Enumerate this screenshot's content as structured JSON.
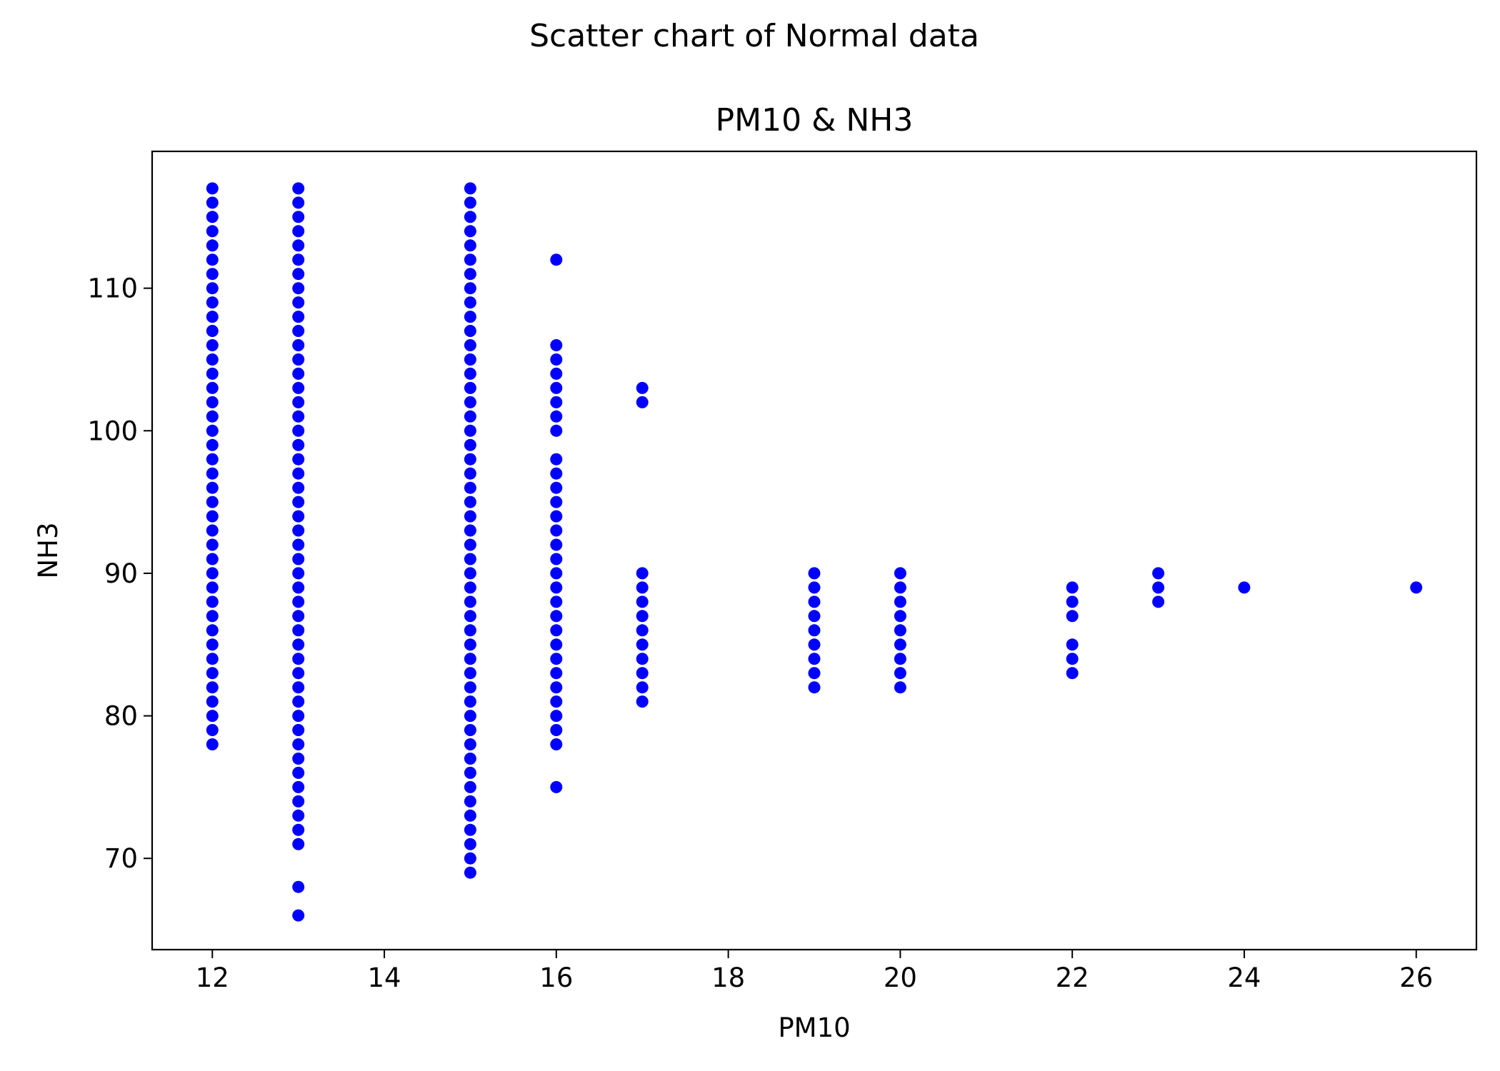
{
  "chart_data": {
    "type": "scatter",
    "suptitle": "Scatter chart of Normal data",
    "title": "PM10 & NH3",
    "xlabel": "PM10",
    "ylabel": "NH3",
    "xlim": [
      11.3,
      26.7
    ],
    "ylim": [
      63.6,
      119.6
    ],
    "xticks": [
      12,
      14,
      16,
      18,
      20,
      22,
      24,
      26
    ],
    "yticks": [
      70,
      80,
      90,
      100,
      110
    ],
    "grid": false,
    "legend": "none",
    "marker_color": "#0000ff",
    "series": [
      {
        "points": [
          [
            12,
            78
          ],
          [
            12,
            79
          ],
          [
            12,
            80
          ],
          [
            12,
            81
          ],
          [
            12,
            82
          ],
          [
            12,
            83
          ],
          [
            12,
            84
          ],
          [
            12,
            85
          ],
          [
            12,
            86
          ],
          [
            12,
            87
          ],
          [
            12,
            88
          ],
          [
            12,
            89
          ],
          [
            12,
            90
          ],
          [
            12,
            91
          ],
          [
            12,
            92
          ],
          [
            12,
            93
          ],
          [
            12,
            94
          ],
          [
            12,
            95
          ],
          [
            12,
            96
          ],
          [
            12,
            97
          ],
          [
            12,
            98
          ],
          [
            12,
            99
          ],
          [
            12,
            100
          ],
          [
            12,
            101
          ],
          [
            12,
            102
          ],
          [
            12,
            103
          ],
          [
            12,
            104
          ],
          [
            12,
            105
          ],
          [
            12,
            106
          ],
          [
            12,
            107
          ],
          [
            12,
            108
          ],
          [
            12,
            109
          ],
          [
            12,
            110
          ],
          [
            12,
            111
          ],
          [
            12,
            112
          ],
          [
            12,
            113
          ],
          [
            12,
            114
          ],
          [
            12,
            115
          ],
          [
            12,
            116
          ],
          [
            12,
            117
          ],
          [
            13,
            66
          ],
          [
            13,
            68
          ],
          [
            13,
            71
          ],
          [
            13,
            72
          ],
          [
            13,
            73
          ],
          [
            13,
            74
          ],
          [
            13,
            75
          ],
          [
            13,
            76
          ],
          [
            13,
            77
          ],
          [
            13,
            78
          ],
          [
            13,
            79
          ],
          [
            13,
            80
          ],
          [
            13,
            81
          ],
          [
            13,
            82
          ],
          [
            13,
            83
          ],
          [
            13,
            84
          ],
          [
            13,
            85
          ],
          [
            13,
            86
          ],
          [
            13,
            87
          ],
          [
            13,
            88
          ],
          [
            13,
            89
          ],
          [
            13,
            90
          ],
          [
            13,
            91
          ],
          [
            13,
            92
          ],
          [
            13,
            93
          ],
          [
            13,
            94
          ],
          [
            13,
            95
          ],
          [
            13,
            96
          ],
          [
            13,
            97
          ],
          [
            13,
            98
          ],
          [
            13,
            99
          ],
          [
            13,
            100
          ],
          [
            13,
            101
          ],
          [
            13,
            102
          ],
          [
            13,
            103
          ],
          [
            13,
            104
          ],
          [
            13,
            105
          ],
          [
            13,
            106
          ],
          [
            13,
            107
          ],
          [
            13,
            108
          ],
          [
            13,
            109
          ],
          [
            13,
            110
          ],
          [
            13,
            111
          ],
          [
            13,
            112
          ],
          [
            13,
            113
          ],
          [
            13,
            114
          ],
          [
            13,
            115
          ],
          [
            13,
            116
          ],
          [
            13,
            117
          ],
          [
            15,
            69
          ],
          [
            15,
            70
          ],
          [
            15,
            71
          ],
          [
            15,
            72
          ],
          [
            15,
            73
          ],
          [
            15,
            74
          ],
          [
            15,
            75
          ],
          [
            15,
            76
          ],
          [
            15,
            77
          ],
          [
            15,
            78
          ],
          [
            15,
            79
          ],
          [
            15,
            80
          ],
          [
            15,
            81
          ],
          [
            15,
            82
          ],
          [
            15,
            83
          ],
          [
            15,
            84
          ],
          [
            15,
            85
          ],
          [
            15,
            86
          ],
          [
            15,
            87
          ],
          [
            15,
            88
          ],
          [
            15,
            89
          ],
          [
            15,
            90
          ],
          [
            15,
            91
          ],
          [
            15,
            92
          ],
          [
            15,
            93
          ],
          [
            15,
            94
          ],
          [
            15,
            95
          ],
          [
            15,
            96
          ],
          [
            15,
            97
          ],
          [
            15,
            98
          ],
          [
            15,
            99
          ],
          [
            15,
            100
          ],
          [
            15,
            101
          ],
          [
            15,
            102
          ],
          [
            15,
            103
          ],
          [
            15,
            104
          ],
          [
            15,
            105
          ],
          [
            15,
            106
          ],
          [
            15,
            107
          ],
          [
            15,
            108
          ],
          [
            15,
            109
          ],
          [
            15,
            110
          ],
          [
            15,
            111
          ],
          [
            15,
            112
          ],
          [
            15,
            113
          ],
          [
            15,
            114
          ],
          [
            15,
            115
          ],
          [
            15,
            116
          ],
          [
            15,
            117
          ],
          [
            16,
            75
          ],
          [
            16,
            78
          ],
          [
            16,
            79
          ],
          [
            16,
            80
          ],
          [
            16,
            81
          ],
          [
            16,
            82
          ],
          [
            16,
            83
          ],
          [
            16,
            84
          ],
          [
            16,
            85
          ],
          [
            16,
            86
          ],
          [
            16,
            87
          ],
          [
            16,
            88
          ],
          [
            16,
            89
          ],
          [
            16,
            90
          ],
          [
            16,
            91
          ],
          [
            16,
            92
          ],
          [
            16,
            93
          ],
          [
            16,
            94
          ],
          [
            16,
            95
          ],
          [
            16,
            96
          ],
          [
            16,
            97
          ],
          [
            16,
            98
          ],
          [
            16,
            100
          ],
          [
            16,
            101
          ],
          [
            16,
            102
          ],
          [
            16,
            103
          ],
          [
            16,
            104
          ],
          [
            16,
            105
          ],
          [
            16,
            106
          ],
          [
            16,
            112
          ],
          [
            17,
            81
          ],
          [
            17,
            82
          ],
          [
            17,
            83
          ],
          [
            17,
            84
          ],
          [
            17,
            85
          ],
          [
            17,
            86
          ],
          [
            17,
            87
          ],
          [
            17,
            88
          ],
          [
            17,
            89
          ],
          [
            17,
            90
          ],
          [
            17,
            102
          ],
          [
            17,
            103
          ],
          [
            19,
            82
          ],
          [
            19,
            83
          ],
          [
            19,
            84
          ],
          [
            19,
            85
          ],
          [
            19,
            86
          ],
          [
            19,
            87
          ],
          [
            19,
            88
          ],
          [
            19,
            89
          ],
          [
            19,
            90
          ],
          [
            20,
            82
          ],
          [
            20,
            83
          ],
          [
            20,
            84
          ],
          [
            20,
            85
          ],
          [
            20,
            86
          ],
          [
            20,
            87
          ],
          [
            20,
            88
          ],
          [
            20,
            89
          ],
          [
            20,
            90
          ],
          [
            22,
            83
          ],
          [
            22,
            84
          ],
          [
            22,
            85
          ],
          [
            22,
            87
          ],
          [
            22,
            88
          ],
          [
            22,
            89
          ],
          [
            23,
            88
          ],
          [
            23,
            89
          ],
          [
            23,
            90
          ],
          [
            24,
            89
          ],
          [
            26,
            89
          ]
        ]
      }
    ]
  }
}
